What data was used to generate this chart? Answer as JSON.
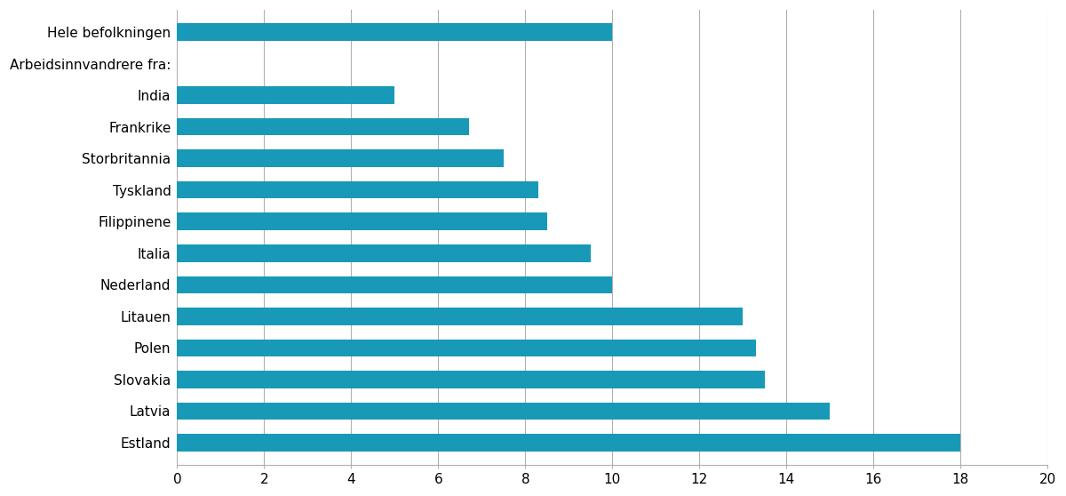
{
  "categories": [
    "Hele befolkningen",
    "Arbeidsinnvandrere fra:",
    "India",
    "Frankrike",
    "Storbritannia",
    "Tyskland",
    "Filippinene",
    "Italia",
    "Nederland",
    "Litauen",
    "Polen",
    "Slovakia",
    "Latvia",
    "Estland"
  ],
  "values": [
    10.0,
    0,
    5.0,
    6.7,
    7.5,
    8.3,
    8.5,
    9.5,
    10.0,
    13.0,
    13.3,
    13.5,
    15.0,
    18.0
  ],
  "bar_color": "#1899b8",
  "background_color": "#ffffff",
  "xlim": [
    0,
    20
  ],
  "xticks": [
    0,
    2,
    4,
    6,
    8,
    10,
    12,
    14,
    16,
    18,
    20
  ],
  "grid_color": "#b0b0b0",
  "bar_height": 0.55,
  "label_row": "Arbeidsinnvandrere fra:",
  "figsize": [
    12.0,
    5.58
  ],
  "dpi": 100,
  "fontsize": 11
}
